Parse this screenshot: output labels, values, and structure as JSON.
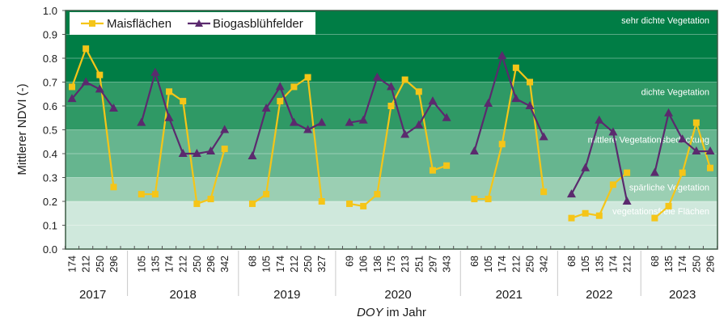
{
  "chart_data": {
    "type": "line",
    "title": "",
    "ylabel": "Mittlerer NDVI (-)",
    "xlabel_italic": "DOY",
    "xlabel_rest": " im Jahr",
    "ylim": [
      0.0,
      1.0
    ],
    "yticks": [
      "0.0",
      "0.1",
      "0.2",
      "0.3",
      "0.4",
      "0.5",
      "0.6",
      "0.7",
      "0.8",
      "0.9",
      "1.0"
    ],
    "grid": true,
    "legend_position": "top-left",
    "bands": [
      {
        "from": 0.0,
        "to": 0.2,
        "label": "vegetationsfreie  Flächen",
        "color": "#cfe8dc"
      },
      {
        "from": 0.2,
        "to": 0.3,
        "label": "spärliche Vegetation",
        "color": "#9bcfb3"
      },
      {
        "from": 0.3,
        "to": 0.5,
        "label": "mittlere  Vegetationsbedeckung",
        "color": "#66b58f"
      },
      {
        "from": 0.5,
        "to": 0.7,
        "label": "dichte Vegetation",
        "color": "#2f9965"
      },
      {
        "from": 0.7,
        "to": 1.0,
        "label": "sehr dichte Vegetation",
        "color": "#007d45"
      }
    ],
    "groups": [
      {
        "year": "2017",
        "doy": [
          "174",
          "212",
          "250",
          "296"
        ],
        "mais": [
          0.68,
          0.84,
          0.73,
          0.26
        ],
        "bio": [
          0.63,
          0.7,
          0.67,
          0.59
        ]
      },
      {
        "year": "2018",
        "doy": [
          "105",
          "135",
          "174",
          "212",
          "250",
          "296",
          "342"
        ],
        "mais": [
          0.23,
          0.23,
          0.66,
          0.62,
          0.19,
          0.21,
          0.42
        ],
        "bio": [
          0.53,
          0.74,
          0.55,
          0.4,
          0.4,
          0.41,
          0.5
        ]
      },
      {
        "year": "2019",
        "doy": [
          "68",
          "105",
          "174",
          "212",
          "250",
          "327"
        ],
        "mais": [
          0.19,
          0.23,
          0.62,
          0.68,
          0.72,
          0.2
        ],
        "bio": [
          0.39,
          0.59,
          0.68,
          0.53,
          0.5,
          0.53
        ]
      },
      {
        "year": "2020",
        "doy": [
          "69",
          "106",
          "136",
          "175",
          "213",
          "251",
          "297",
          "343"
        ],
        "mais": [
          0.19,
          0.18,
          0.23,
          0.6,
          0.71,
          0.66,
          0.33,
          0.35
        ],
        "bio": [
          0.53,
          0.54,
          0.72,
          0.68,
          0.48,
          0.52,
          0.62,
          0.55
        ]
      },
      {
        "year": "2021",
        "doy": [
          "68",
          "105",
          "174",
          "212",
          "250",
          "342"
        ],
        "mais": [
          0.21,
          0.21,
          0.44,
          0.76,
          0.7,
          0.24
        ],
        "bio": [
          0.41,
          0.61,
          0.81,
          0.63,
          0.6,
          0.47
        ]
      },
      {
        "year": "2022",
        "doy": [
          "68",
          "105",
          "135",
          "174",
          "212"
        ],
        "mais": [
          0.13,
          0.15,
          0.14,
          0.27,
          0.32
        ],
        "bio": [
          0.23,
          0.34,
          0.54,
          0.49,
          0.2
        ]
      },
      {
        "year": "2023",
        "doy": [
          "68",
          "135",
          "174",
          "250",
          "296"
        ],
        "mais": [
          0.13,
          0.18,
          0.32,
          0.53,
          0.34
        ],
        "bio": [
          0.32,
          0.57,
          0.46,
          0.41,
          0.41
        ]
      }
    ],
    "series": [
      {
        "key": "mais",
        "name": "Maisflächen",
        "color": "#f5c518",
        "marker": "square"
      },
      {
        "key": "bio",
        "name": "Biogasblühfelder",
        "color": "#5b2a6e",
        "marker": "triangle"
      }
    ]
  }
}
